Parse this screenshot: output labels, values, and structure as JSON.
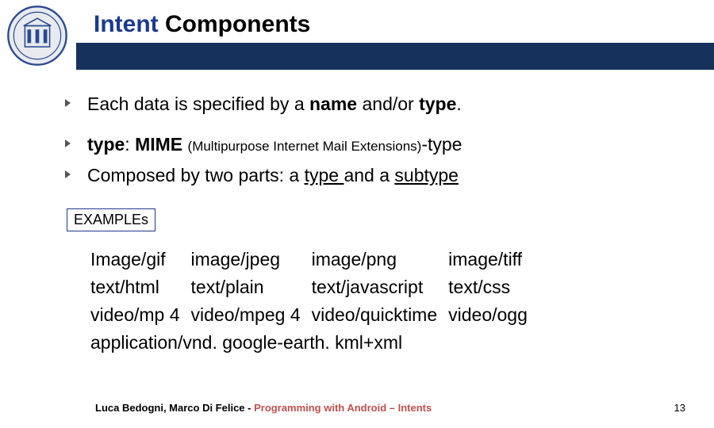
{
  "colors": {
    "accent": "#1a3a8f",
    "bar": "#16325c",
    "course": "#c0504d",
    "logo_border": "#2a4a90",
    "logo_fill": "#e8eaef"
  },
  "header": {
    "title_accent": "Intent",
    "title_rest": " Components"
  },
  "bullets": {
    "b1_pre": "Each data is specified by a ",
    "b1_bold1": "name ",
    "b1_mid": "and/or ",
    "b1_bold2": "type",
    "b1_post": ".",
    "b2_bold": "type",
    "b2_colon": ": ",
    "b2_mime": "MIME ",
    "b2_small": "(Multipurpose Internet Mail Extensions)",
    "b2_tail": "-type",
    "b3_pre": "Composed by two parts: a ",
    "b3_u1": "type ",
    "b3_mid": "and a ",
    "b3_u2": "subtype"
  },
  "examples": {
    "label": "EXAMPLEs",
    "rows": [
      [
        "Image/gif",
        "image/jpeg",
        "image/png",
        "image/tiff"
      ],
      [
        "text/html",
        "text/plain",
        "text/javascript",
        "text/css"
      ],
      [
        "video/mp 4",
        "video/mpeg 4",
        "video/quicktime",
        "video/ogg"
      ],
      [
        "application/vnd. google-earth. kml+xml",
        "",
        "",
        ""
      ]
    ]
  },
  "footer": {
    "authors": "Luca Bedogni, Marco Di Felice",
    "dash": " - ",
    "course": "Programming with Android – Intents",
    "page": "13"
  }
}
